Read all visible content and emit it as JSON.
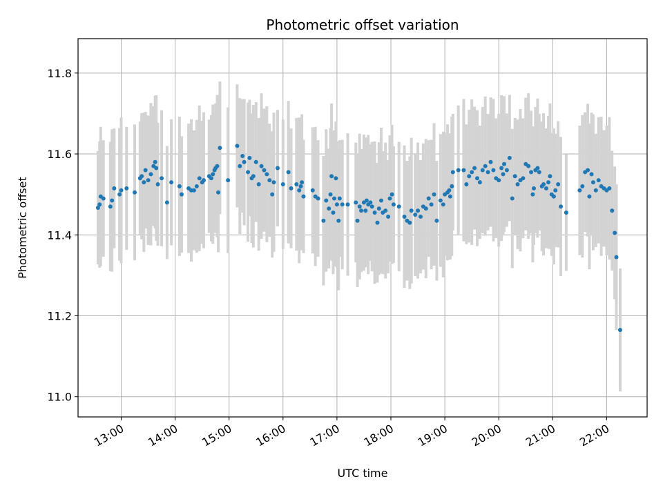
{
  "chart_data": {
    "type": "scatter",
    "title": "Photometric offset variation",
    "xlabel": "UTC time",
    "ylabel": "Photometric offset",
    "xlim_hours": [
      12.2,
      22.75
    ],
    "ylim": [
      10.95,
      11.885
    ],
    "x_ticks": [
      {
        "hour": 13,
        "label": "13:00"
      },
      {
        "hour": 14,
        "label": "14:00"
      },
      {
        "hour": 15,
        "label": "15:00"
      },
      {
        "hour": 16,
        "label": "16:00"
      },
      {
        "hour": 17,
        "label": "17:00"
      },
      {
        "hour": 18,
        "label": "18:00"
      },
      {
        "hour": 19,
        "label": "19:00"
      },
      {
        "hour": 20,
        "label": "20:00"
      },
      {
        "hour": 21,
        "label": "21:00"
      },
      {
        "hour": 22,
        "label": "22:00"
      }
    ],
    "y_ticks": [
      {
        "value": 11.0,
        "label": "11.0"
      },
      {
        "value": 11.2,
        "label": "11.2"
      },
      {
        "value": 11.4,
        "label": "11.4"
      },
      {
        "value": 11.6,
        "label": "11.6"
      },
      {
        "value": 11.8,
        "label": "11.8"
      }
    ],
    "grid": true,
    "colors": {
      "points": "#1f77b4",
      "errorbars": "#d3d3d3",
      "grid": "#b0b0b0"
    },
    "error_half_width": 0.16,
    "points": [
      [
        12.57,
        11.467
      ],
      [
        12.6,
        11.475
      ],
      [
        12.62,
        11.495
      ],
      [
        12.67,
        11.49
      ],
      [
        12.8,
        11.47
      ],
      [
        12.83,
        11.485
      ],
      [
        12.87,
        11.515
      ],
      [
        12.97,
        11.5
      ],
      [
        13.0,
        11.51
      ],
      [
        13.1,
        11.515
      ],
      [
        13.25,
        11.505
      ],
      [
        13.35,
        11.54
      ],
      [
        13.38,
        11.545
      ],
      [
        13.42,
        11.53
      ],
      [
        13.45,
        11.56
      ],
      [
        13.5,
        11.535
      ],
      [
        13.55,
        11.55
      ],
      [
        13.6,
        11.57
      ],
      [
        13.63,
        11.58
      ],
      [
        13.65,
        11.565
      ],
      [
        13.68,
        11.525
      ],
      [
        13.75,
        11.54
      ],
      [
        13.85,
        11.48
      ],
      [
        13.93,
        11.53
      ],
      [
        14.08,
        11.52
      ],
      [
        14.12,
        11.5
      ],
      [
        14.25,
        11.515
      ],
      [
        14.3,
        11.51
      ],
      [
        14.35,
        11.51
      ],
      [
        14.4,
        11.52
      ],
      [
        14.45,
        11.54
      ],
      [
        14.5,
        11.53
      ],
      [
        14.53,
        11.535
      ],
      [
        14.63,
        11.545
      ],
      [
        14.67,
        11.54
      ],
      [
        14.7,
        11.55
      ],
      [
        14.73,
        11.56
      ],
      [
        14.75,
        11.565
      ],
      [
        14.78,
        11.57
      ],
      [
        14.8,
        11.505
      ],
      [
        14.83,
        11.615
      ],
      [
        14.98,
        11.535
      ],
      [
        15.15,
        11.62
      ],
      [
        15.2,
        11.57
      ],
      [
        15.25,
        11.595
      ],
      [
        15.28,
        11.58
      ],
      [
        15.35,
        11.555
      ],
      [
        15.38,
        11.59
      ],
      [
        15.42,
        11.54
      ],
      [
        15.45,
        11.545
      ],
      [
        15.5,
        11.58
      ],
      [
        15.55,
        11.525
      ],
      [
        15.6,
        11.57
      ],
      [
        15.65,
        11.56
      ],
      [
        15.7,
        11.55
      ],
      [
        15.75,
        11.535
      ],
      [
        15.8,
        11.5
      ],
      [
        15.83,
        11.53
      ],
      [
        15.9,
        11.565
      ],
      [
        16.0,
        11.525
      ],
      [
        16.1,
        11.555
      ],
      [
        16.15,
        11.515
      ],
      [
        16.25,
        11.525
      ],
      [
        16.3,
        11.51
      ],
      [
        16.33,
        11.52
      ],
      [
        16.35,
        11.53
      ],
      [
        16.38,
        11.495
      ],
      [
        16.55,
        11.51
      ],
      [
        16.6,
        11.495
      ],
      [
        16.65,
        11.49
      ],
      [
        16.75,
        11.435
      ],
      [
        16.8,
        11.485
      ],
      [
        16.85,
        11.465
      ],
      [
        16.88,
        11.5
      ],
      [
        16.9,
        11.545
      ],
      [
        16.93,
        11.455
      ],
      [
        16.95,
        11.49
      ],
      [
        16.98,
        11.54
      ],
      [
        17.0,
        11.475
      ],
      [
        17.03,
        11.435
      ],
      [
        17.05,
        11.49
      ],
      [
        17.1,
        11.475
      ],
      [
        17.2,
        11.475
      ],
      [
        17.35,
        11.48
      ],
      [
        17.38,
        11.435
      ],
      [
        17.42,
        11.47
      ],
      [
        17.45,
        11.46
      ],
      [
        17.5,
        11.48
      ],
      [
        17.53,
        11.46
      ],
      [
        17.55,
        11.485
      ],
      [
        17.58,
        11.475
      ],
      [
        17.62,
        11.48
      ],
      [
        17.65,
        11.47
      ],
      [
        17.7,
        11.455
      ],
      [
        17.75,
        11.43
      ],
      [
        17.78,
        11.465
      ],
      [
        17.82,
        11.485
      ],
      [
        17.85,
        11.455
      ],
      [
        17.9,
        11.46
      ],
      [
        17.95,
        11.445
      ],
      [
        17.98,
        11.49
      ],
      [
        18.02,
        11.5
      ],
      [
        18.05,
        11.475
      ],
      [
        18.15,
        11.47
      ],
      [
        18.25,
        11.445
      ],
      [
        18.3,
        11.435
      ],
      [
        18.35,
        11.43
      ],
      [
        18.38,
        11.46
      ],
      [
        18.45,
        11.45
      ],
      [
        18.5,
        11.46
      ],
      [
        18.55,
        11.445
      ],
      [
        18.6,
        11.47
      ],
      [
        18.65,
        11.465
      ],
      [
        18.7,
        11.49
      ],
      [
        18.75,
        11.475
      ],
      [
        18.8,
        11.5
      ],
      [
        18.85,
        11.435
      ],
      [
        18.92,
        11.485
      ],
      [
        18.97,
        11.475
      ],
      [
        19.0,
        11.5
      ],
      [
        19.05,
        11.505
      ],
      [
        19.08,
        11.51
      ],
      [
        19.1,
        11.495
      ],
      [
        19.13,
        11.52
      ],
      [
        19.15,
        11.555
      ],
      [
        19.25,
        11.56
      ],
      [
        19.35,
        11.56
      ],
      [
        19.4,
        11.525
      ],
      [
        19.45,
        11.545
      ],
      [
        19.5,
        11.555
      ],
      [
        19.55,
        11.565
      ],
      [
        19.6,
        11.54
      ],
      [
        19.65,
        11.53
      ],
      [
        19.7,
        11.56
      ],
      [
        19.75,
        11.57
      ],
      [
        19.8,
        11.555
      ],
      [
        19.85,
        11.58
      ],
      [
        19.9,
        11.56
      ],
      [
        19.95,
        11.54
      ],
      [
        20.0,
        11.535
      ],
      [
        20.05,
        11.565
      ],
      [
        20.08,
        11.55
      ],
      [
        20.1,
        11.575
      ],
      [
        20.15,
        11.56
      ],
      [
        20.2,
        11.59
      ],
      [
        20.25,
        11.49
      ],
      [
        20.3,
        11.545
      ],
      [
        20.35,
        11.525
      ],
      [
        20.4,
        11.535
      ],
      [
        20.45,
        11.54
      ],
      [
        20.5,
        11.575
      ],
      [
        20.55,
        11.57
      ],
      [
        20.6,
        11.555
      ],
      [
        20.63,
        11.5
      ],
      [
        20.65,
        11.515
      ],
      [
        20.68,
        11.56
      ],
      [
        20.72,
        11.565
      ],
      [
        20.75,
        11.555
      ],
      [
        20.8,
        11.52
      ],
      [
        20.83,
        11.525
      ],
      [
        20.88,
        11.515
      ],
      [
        20.92,
        11.53
      ],
      [
        20.95,
        11.545
      ],
      [
        20.98,
        11.5
      ],
      [
        21.02,
        11.495
      ],
      [
        21.05,
        11.51
      ],
      [
        21.1,
        11.525
      ],
      [
        21.15,
        11.47
      ],
      [
        21.25,
        11.455
      ],
      [
        21.5,
        11.51
      ],
      [
        21.55,
        11.52
      ],
      [
        21.6,
        11.555
      ],
      [
        21.65,
        11.56
      ],
      [
        21.68,
        11.495
      ],
      [
        21.72,
        11.55
      ],
      [
        21.75,
        11.53
      ],
      [
        21.8,
        11.51
      ],
      [
        21.85,
        11.535
      ],
      [
        21.9,
        11.52
      ],
      [
        21.95,
        11.515
      ],
      [
        22.0,
        11.51
      ],
      [
        22.05,
        11.515
      ],
      [
        22.1,
        11.46
      ],
      [
        22.15,
        11.405
      ],
      [
        22.18,
        11.345
      ],
      [
        22.25,
        11.165
      ]
    ]
  }
}
